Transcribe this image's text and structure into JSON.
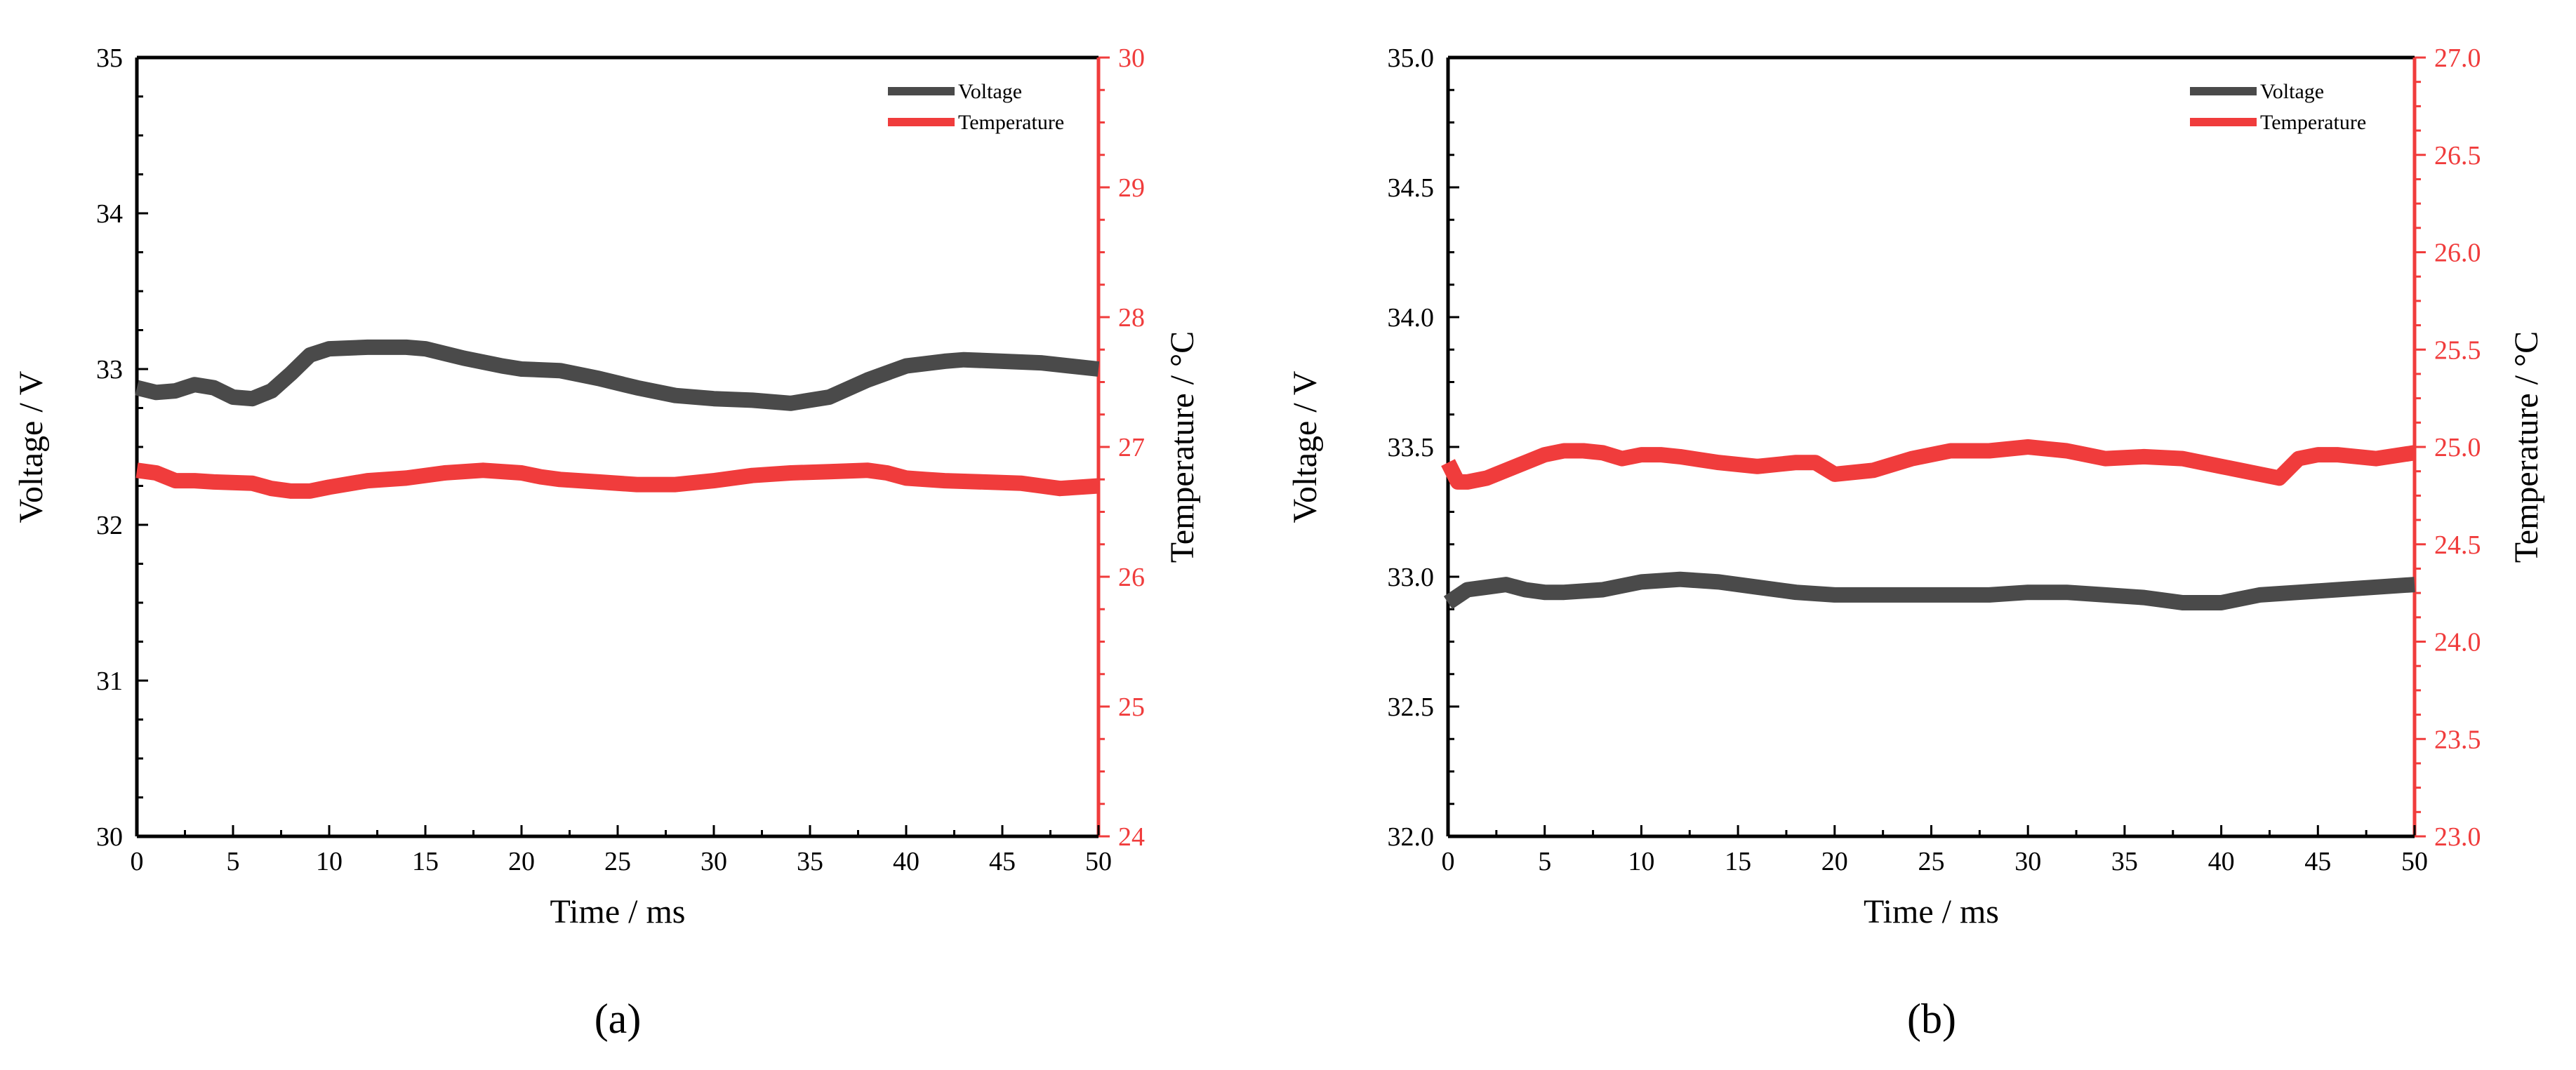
{
  "figure": {
    "panel_a_label": "(a)",
    "panel_b_label": "(b)"
  },
  "chart_data": [
    {
      "type": "line",
      "panel": "(a)",
      "xlabel": "Time / ms",
      "ylabel_left": "Voltage / V",
      "ylabel_right": "Temperature / °C",
      "x_range": [
        0,
        50
      ],
      "x_ticks": [
        0,
        5,
        10,
        15,
        20,
        25,
        30,
        35,
        40,
        45,
        50
      ],
      "y_left_range": [
        30,
        35
      ],
      "y_left_ticks": [
        "30",
        "31",
        "32",
        "33",
        "34",
        "35"
      ],
      "y_right_range": [
        24,
        30
      ],
      "y_right_ticks": [
        "24",
        "25",
        "26",
        "27",
        "28",
        "29",
        "30"
      ],
      "grid": false,
      "legend_position": "top-right",
      "series": [
        {
          "name": "Voltage",
          "axis": "left",
          "color": "#4a4a4a",
          "x": [
            0,
            1,
            2,
            3,
            4,
            5,
            6,
            7,
            8,
            9,
            10,
            12,
            14,
            15,
            17,
            19,
            20,
            22,
            24,
            26,
            28,
            30,
            32,
            34,
            36,
            38,
            40,
            42,
            43,
            45,
            47,
            50
          ],
          "y": [
            32.88,
            32.85,
            32.86,
            32.9,
            32.88,
            32.82,
            32.81,
            32.86,
            32.97,
            33.09,
            33.13,
            33.14,
            33.14,
            33.13,
            33.07,
            33.02,
            33.0,
            32.99,
            32.94,
            32.88,
            32.83,
            32.81,
            32.8,
            32.78,
            32.82,
            32.93,
            33.02,
            33.05,
            33.06,
            33.05,
            33.04,
            33.0
          ]
        },
        {
          "name": "Temperature",
          "axis": "right",
          "color": "#f03c3c",
          "x": [
            0,
            1,
            2,
            3,
            4,
            6,
            7,
            8,
            9,
            10,
            12,
            14,
            16,
            18,
            20,
            21,
            22,
            24,
            26,
            28,
            30,
            32,
            34,
            36,
            38,
            39,
            40,
            41,
            42,
            44,
            46,
            47,
            48,
            50
          ],
          "y": [
            26.82,
            26.8,
            26.74,
            26.74,
            26.73,
            26.72,
            26.68,
            26.66,
            26.66,
            26.69,
            26.74,
            26.76,
            26.8,
            26.82,
            26.8,
            26.77,
            26.75,
            26.73,
            26.71,
            26.71,
            26.74,
            26.78,
            26.8,
            26.81,
            26.82,
            26.8,
            26.76,
            26.75,
            26.74,
            26.73,
            26.72,
            26.7,
            26.68,
            26.7
          ]
        }
      ]
    },
    {
      "type": "line",
      "panel": "(b)",
      "xlabel": "Time / ms",
      "ylabel_left": "Voltage / V",
      "ylabel_right": "Temperature / °C",
      "x_range": [
        0,
        50
      ],
      "x_ticks": [
        0,
        5,
        10,
        15,
        20,
        25,
        30,
        35,
        40,
        45,
        50
      ],
      "y_left_range": [
        32.0,
        35.0
      ],
      "y_left_ticks": [
        "32.0",
        "32.5",
        "33.0",
        "33.5",
        "34.0",
        "34.5",
        "35.0"
      ],
      "y_right_range": [
        23.0,
        27.0
      ],
      "y_right_ticks": [
        "23.0",
        "23.5",
        "24.0",
        "24.5",
        "25.0",
        "25.5",
        "26.0",
        "26.5",
        "27.0"
      ],
      "grid": false,
      "legend_position": "top-right",
      "series": [
        {
          "name": "Voltage",
          "axis": "left",
          "color": "#4a4a4a",
          "x": [
            0,
            1,
            2,
            3,
            4,
            5,
            6,
            8,
            10,
            12,
            14,
            16,
            18,
            20,
            22,
            24,
            26,
            28,
            30,
            32,
            34,
            36,
            38,
            40,
            42,
            44,
            46,
            48,
            50
          ],
          "y": [
            32.9,
            32.95,
            32.96,
            32.97,
            32.95,
            32.94,
            32.94,
            32.95,
            32.98,
            32.99,
            32.98,
            32.96,
            32.94,
            32.93,
            32.93,
            32.93,
            32.93,
            32.93,
            32.94,
            32.94,
            32.93,
            32.92,
            32.9,
            32.9,
            32.93,
            32.94,
            32.95,
            32.96,
            32.97
          ]
        },
        {
          "name": "Temperature",
          "axis": "right",
          "color": "#f03c3c",
          "x": [
            0,
            0.5,
            1,
            2,
            3,
            4,
            5,
            6,
            7,
            8,
            9,
            10,
            11,
            12,
            14,
            16,
            18,
            19,
            20,
            22,
            24,
            26,
            28,
            30,
            32,
            34,
            36,
            38,
            40,
            41,
            42,
            43,
            44,
            45,
            46,
            48,
            50
          ],
          "y": [
            24.92,
            24.82,
            24.82,
            24.84,
            24.88,
            24.92,
            24.96,
            24.98,
            24.98,
            24.97,
            24.94,
            24.96,
            24.96,
            24.95,
            24.92,
            24.9,
            24.92,
            24.92,
            24.86,
            24.88,
            24.94,
            24.98,
            24.98,
            25.0,
            24.98,
            24.94,
            24.95,
            24.94,
            24.9,
            24.88,
            24.86,
            24.84,
            24.94,
            24.96,
            24.96,
            24.94,
            24.97
          ]
        }
      ]
    }
  ]
}
